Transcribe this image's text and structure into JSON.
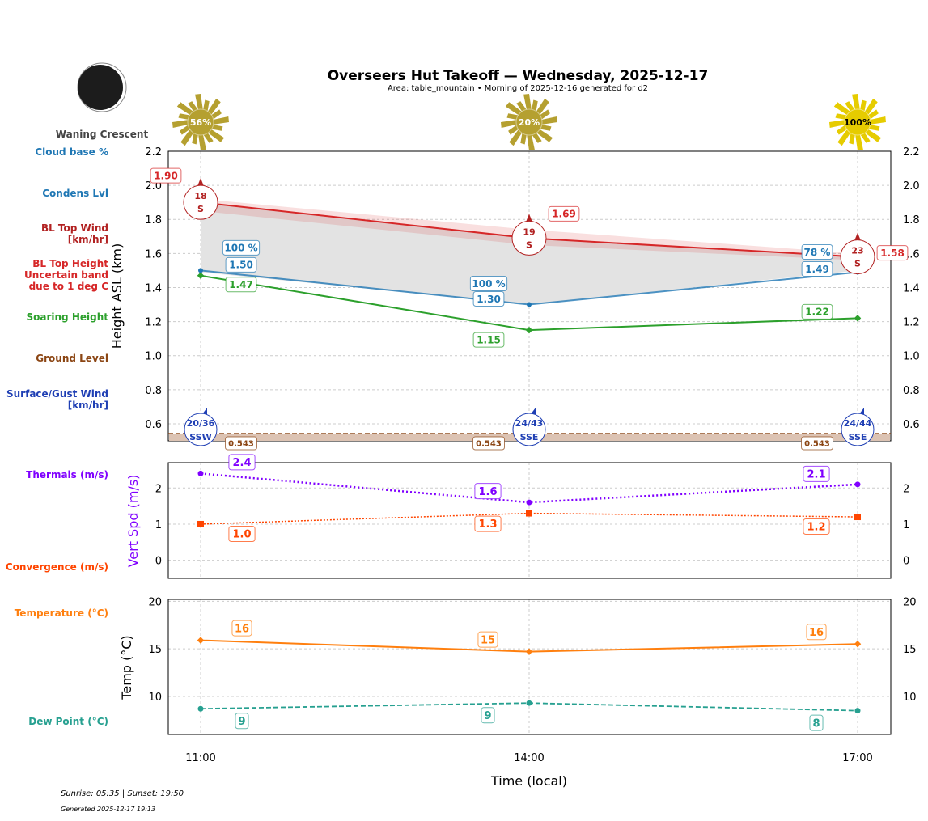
{
  "title": "Overseers Hut Takeoff — Wednesday, 2025-12-17",
  "subtitle": "Area: table_mountain • Morning of 2025-12-16 generated for d2",
  "moon_phase": "Waning Crescent",
  "footer": {
    "sun": "Sunrise: 05:35 | Sunset: 19:50",
    "generated": "Generated 2025-12-17 19:13"
  },
  "side_labels": {
    "cloud_base": "Cloud base %",
    "condens": "Condens Lvl",
    "bl_wind": [
      "BL Top Wind",
      "[km/hr]"
    ],
    "bl_height": [
      "BL Top Height",
      "Uncertain band",
      "due to 1 deg C"
    ],
    "soaring": "Soaring Height",
    "ground": "Ground Level",
    "surface_wind": [
      "Surface/Gust Wind",
      "[km/hr]"
    ],
    "thermals": "Thermals (m/s)",
    "convergence": "Convergence (m/s)",
    "temperature": "Temperature (°C)",
    "dew": "Dew Point (°C)"
  },
  "colors": {
    "bl": "#d62728",
    "condens": "#1f77b4",
    "soaring": "#2ca02c",
    "ground": "#8b4513",
    "surface": "#1f3fb4",
    "thermal": "#8000ff",
    "conv": "#ff4500",
    "temp": "#ff7f0e",
    "dew": "#26a090"
  },
  "chart_data": [
    {
      "type": "line",
      "xlabel": "",
      "ylabel": "Height ASL (km)",
      "ylim": [
        0.5,
        2.2
      ],
      "yticks": [
        "0.6",
        "0.8",
        "1.0",
        "1.2",
        "1.4",
        "1.6",
        "1.8",
        "2.0",
        "2.2"
      ],
      "x": [
        "11:00",
        "14:00",
        "17:00"
      ],
      "sun_cover": [
        "56%",
        "20%",
        "100%"
      ],
      "series": [
        {
          "key": "bl",
          "values": [
            1.9,
            1.69,
            1.58
          ],
          "labels": [
            "1.90",
            "1.69",
            "1.58"
          ]
        },
        {
          "key": "bl_band_upper",
          "values": [
            1.92,
            1.74,
            1.6
          ]
        },
        {
          "key": "bl_band_lower",
          "values": [
            1.85,
            1.65,
            1.56
          ]
        },
        {
          "key": "condens",
          "values": [
            1.5,
            1.3,
            1.49
          ],
          "labels": [
            "1.50",
            "1.30",
            "1.49"
          ],
          "cloud_pct": [
            "100 %",
            "100 %",
            "78 %"
          ]
        },
        {
          "key": "soaring",
          "values": [
            1.47,
            1.15,
            1.22
          ],
          "labels": [
            "1.47",
            "1.15",
            "1.22"
          ]
        },
        {
          "key": "ground",
          "values": [
            0.543,
            0.543,
            0.543
          ],
          "labels": [
            "0.543",
            "0.543",
            "0.543"
          ]
        }
      ],
      "bl_wind": [
        {
          "speed": "18",
          "dir": "S"
        },
        {
          "speed": "19",
          "dir": "S"
        },
        {
          "speed": "23",
          "dir": "S"
        }
      ],
      "surface_wind": [
        {
          "speed": "20/36",
          "dir": "SSW"
        },
        {
          "speed": "24/43",
          "dir": "SSE"
        },
        {
          "speed": "24/44",
          "dir": "SSE"
        }
      ]
    },
    {
      "type": "line",
      "ylabel": "Vert Spd (m/s)",
      "ylim": [
        -0.5,
        2.7
      ],
      "yticks": [
        "0",
        "1",
        "2"
      ],
      "series": [
        {
          "key": "thermal",
          "values": [
            2.4,
            1.6,
            2.1
          ],
          "labels": [
            "2.4",
            "1.6",
            "2.1"
          ]
        },
        {
          "key": "conv",
          "values": [
            1.0,
            1.3,
            1.2
          ],
          "labels": [
            "1.0",
            "1.3",
            "1.2"
          ]
        }
      ]
    },
    {
      "type": "line",
      "ylabel": "Temp (°C)",
      "xlabel": "Time (local)",
      "ylim": [
        6,
        20.2
      ],
      "yticks": [
        "10",
        "15",
        "20"
      ],
      "xticks": [
        "11:00",
        "14:00",
        "17:00"
      ],
      "series": [
        {
          "key": "temp",
          "values": [
            15.9,
            14.7,
            15.5
          ],
          "labels": [
            "16",
            "15",
            "16"
          ]
        },
        {
          "key": "dew",
          "values": [
            8.7,
            9.3,
            8.5
          ],
          "labels": [
            "9",
            "9",
            "8"
          ]
        }
      ]
    }
  ]
}
